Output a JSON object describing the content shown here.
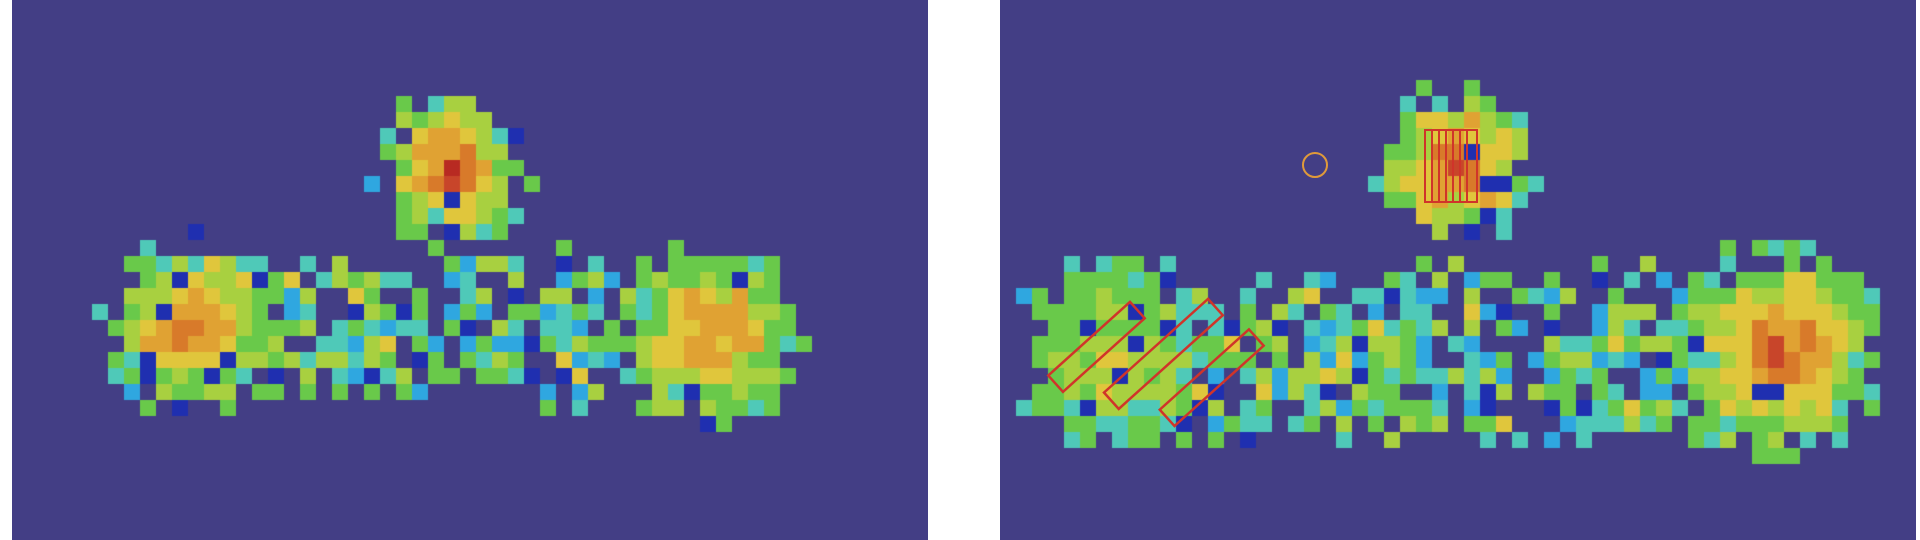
{
  "scene": {
    "description_free": true,
    "palette": {
      "background": "#433E85",
      "colormap": [
        "#1F2FB0",
        "#2FA7E0",
        "#4FC9B8",
        "#69C94A",
        "#A8D040",
        "#E0C63C",
        "#E0A233",
        "#D87A2A",
        "#C8452A",
        "#B82A22"
      ],
      "overlay_red": "#D0342A",
      "overlay_orange": "#E09A3A"
    },
    "panels": [
      {
        "id": "left",
        "blobs": [
          {
            "name": "top-center-blob",
            "peak": 0.95,
            "falloff": 1.0
          },
          {
            "name": "lower-left-blob",
            "peak": 0.78,
            "falloff": 1.0
          },
          {
            "name": "lower-right-blob",
            "peak": 0.76,
            "falloff": 1.0
          }
        ],
        "overlays": []
      },
      {
        "id": "right",
        "blobs": [
          {
            "name": "top-center-blob",
            "peak": 0.92,
            "falloff": 1.0
          },
          {
            "name": "lower-left-blob",
            "peak": 0.45,
            "falloff": 1.0
          },
          {
            "name": "lower-right-blob",
            "peak": 0.88,
            "falloff": 1.0
          }
        ],
        "overlays": [
          {
            "name": "hatched-box-overlay"
          },
          {
            "name": "tilted-rectangle-overlay"
          },
          {
            "name": "small-circle-marker"
          }
        ]
      }
    ]
  }
}
